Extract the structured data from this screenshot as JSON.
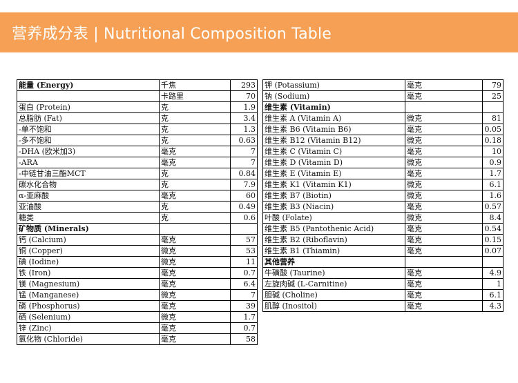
{
  "header": {
    "title": "营养成分表 | Nutritional Composition Table",
    "bg_color": "#f5a054"
  },
  "left_table": [
    {
      "name": "能量 (Energy)",
      "unit": "千焦",
      "value": "293",
      "bold": true
    },
    {
      "name": "",
      "unit": "卡路里",
      "value": "70"
    },
    {
      "name": "蛋白 (Protein)",
      "unit": "克",
      "value": "1.9"
    },
    {
      "name": "总脂肪 (Fat)",
      "unit": "克",
      "value": "3.4"
    },
    {
      "name": "-单不饱和",
      "unit": "克",
      "value": "1.3"
    },
    {
      "name": "-多不饱和",
      "unit": "克",
      "value": "0.63"
    },
    {
      "name": "-DHA (欧米加3)",
      "unit": "毫克",
      "value": "7"
    },
    {
      "name": "-ARA",
      "unit": "毫克",
      "value": "7"
    },
    {
      "name": "-中链甘油三酯MCT",
      "unit": "克",
      "value": "0.84"
    },
    {
      "name": "碳水化合物",
      "unit": "克",
      "value": "7.9"
    },
    {
      "name": "α-亚麻酸",
      "unit": "毫克",
      "value": "60"
    },
    {
      "name": "亚油酸",
      "unit": "克",
      "value": "0.49"
    },
    {
      "name": "糖类",
      "unit": "克",
      "value": "0.6"
    },
    {
      "name": "矿物质 (Minerals)",
      "unit": "",
      "value": "",
      "bold": true
    },
    {
      "name": "钙 (Calcium)",
      "unit": "毫克",
      "value": "57"
    },
    {
      "name": "铜 (Copper)",
      "unit": "微克",
      "value": "53"
    },
    {
      "name": "碘 (Iodine)",
      "unit": "微克",
      "value": "11"
    },
    {
      "name": "铁 (Iron)",
      "unit": "毫克",
      "value": "0.7"
    },
    {
      "name": "镁 (Magnesium)",
      "unit": "毫克",
      "value": "6.4"
    },
    {
      "name": "锰 (Manganese)",
      "unit": "微克",
      "value": "7"
    },
    {
      "name": "磷 (Phosphorus)",
      "unit": "毫克",
      "value": "39"
    },
    {
      "name": "硒 (Selenium)",
      "unit": "微克",
      "value": "1.7"
    },
    {
      "name": "锌 (Zinc)",
      "unit": "毫克",
      "value": "0.7"
    },
    {
      "name": "氯化物 (Chloride)",
      "unit": "毫克",
      "value": "58"
    }
  ],
  "right_table": [
    {
      "name": "钾 (Potassium)",
      "unit": "毫克",
      "value": "79"
    },
    {
      "name": "钠 (Sodium)",
      "unit": "毫克",
      "value": "25"
    },
    {
      "name": "维生素 (Vitamin)",
      "unit": "",
      "value": "",
      "bold": true
    },
    {
      "name": "维生素 A (Vitamin A)",
      "unit": "微克",
      "value": "81"
    },
    {
      "name": "维生素 B6 (Vitamin B6)",
      "unit": "毫克",
      "value": "0.05"
    },
    {
      "name": "维生素 B12 (Vitamin B12)",
      "unit": "微克",
      "value": "0.18"
    },
    {
      "name": "维生素 C (Vitamin C)",
      "unit": "毫克",
      "value": "10"
    },
    {
      "name": "维生素 D (Vitamin D)",
      "unit": "微克",
      "value": "0.9"
    },
    {
      "name": "维生素 E (Vitamin E)",
      "unit": "毫克",
      "value": "1.7"
    },
    {
      "name": "维生素 K1 (Vitamin K1)",
      "unit": "微克",
      "value": "6.1"
    },
    {
      "name": "维生素 B7 (Biotin)",
      "unit": "微克",
      "value": "1.6"
    },
    {
      "name": "维生素 B3 (Niacin)",
      "unit": "毫克",
      "value": "0.57"
    },
    {
      "name": "叶酸 (Folate)",
      "unit": "微克",
      "value": "8.4"
    },
    {
      "name": "维生素 B5 (Pantothenic Acid)",
      "unit": "毫克",
      "value": "0.54"
    },
    {
      "name": "维生素 B2 (Riboflavin)",
      "unit": "毫克",
      "value": "0.15"
    },
    {
      "name": "维生素 B1 (Thiamin)",
      "unit": "毫克",
      "value": "0.07"
    },
    {
      "name": "其他营养",
      "unit": "",
      "value": "",
      "bold": true
    },
    {
      "name": "牛磺酸 (Taurine)",
      "unit": "毫克",
      "value": "4.9"
    },
    {
      "name": "左旋肉碱 (L-Carnitine)",
      "unit": "毫克",
      "value": "1"
    },
    {
      "name": "胆碱 (Choline)",
      "unit": "毫克",
      "value": "6.1"
    },
    {
      "name": "肌醇 (Inositol)",
      "unit": "毫克",
      "value": "4.3"
    }
  ]
}
